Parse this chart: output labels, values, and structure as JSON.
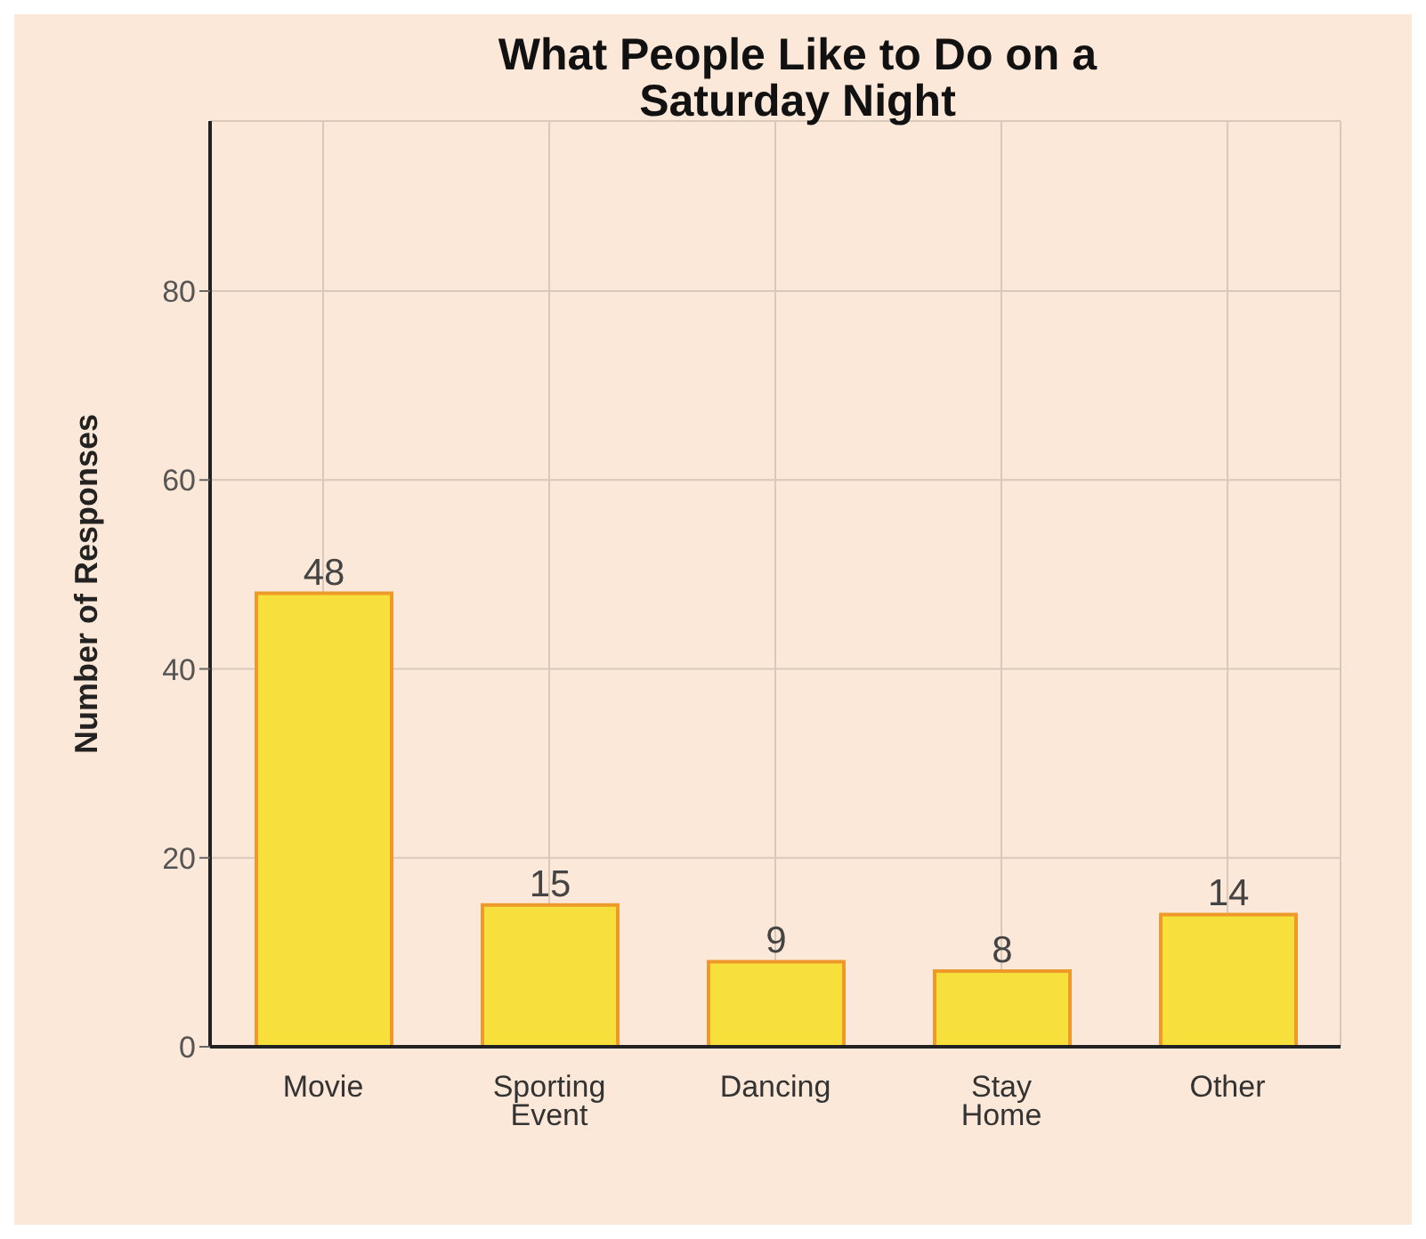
{
  "chart_data": {
    "type": "bar",
    "title": "What People Like to Do on a Saturday Night",
    "ylabel": "Number of Responses",
    "categories": [
      "Movie",
      "Sporting Event",
      "Dancing",
      "Stay Home",
      "Other"
    ],
    "values": [
      48,
      15,
      9,
      8,
      14
    ],
    "color": "#f7e03c",
    "ylim": [
      0,
      98
    ],
    "yticks": [
      0,
      20,
      40,
      60,
      80
    ],
    "grid": true,
    "data_labels": true
  }
}
